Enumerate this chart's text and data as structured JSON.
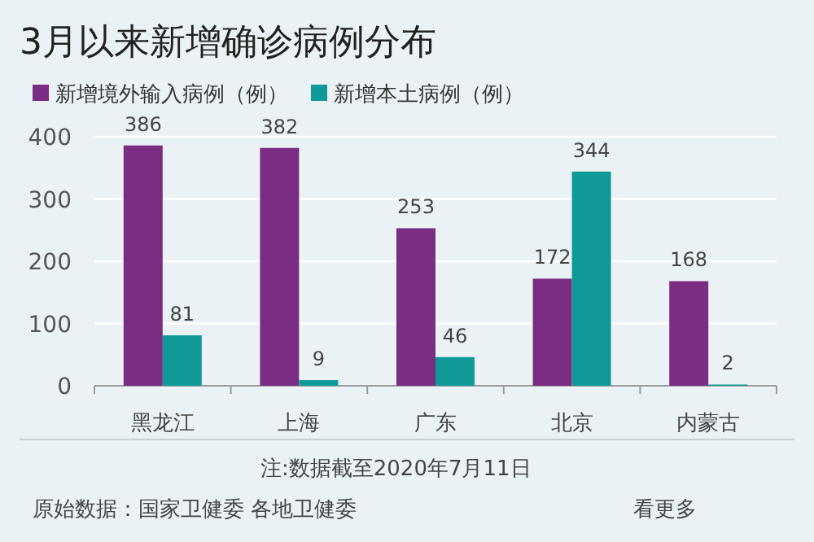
{
  "chart_data": {
    "type": "bar",
    "title": "3月以来新增确诊病例分布",
    "categories": [
      "黑龙江",
      "上海",
      "广东",
      "北京",
      "内蒙古"
    ],
    "series": [
      {
        "name": "新增境外输入病例（例）",
        "color": "#7b2d84",
        "values": [
          386,
          382,
          253,
          172,
          168
        ]
      },
      {
        "name": "新增本土病例（例）",
        "color": "#0f9a98",
        "values": [
          81,
          9,
          46,
          344,
          2
        ]
      }
    ],
    "ylim": [
      0,
      400
    ],
    "yticks": [
      0,
      100,
      200,
      300,
      400
    ],
    "grid": "y",
    "legend": "top left",
    "data_labels": true,
    "annotations": [
      "注:数据截至2020年7月11日",
      "原始数据：国家卫健委 各地卫健委",
      "看更多"
    ]
  }
}
